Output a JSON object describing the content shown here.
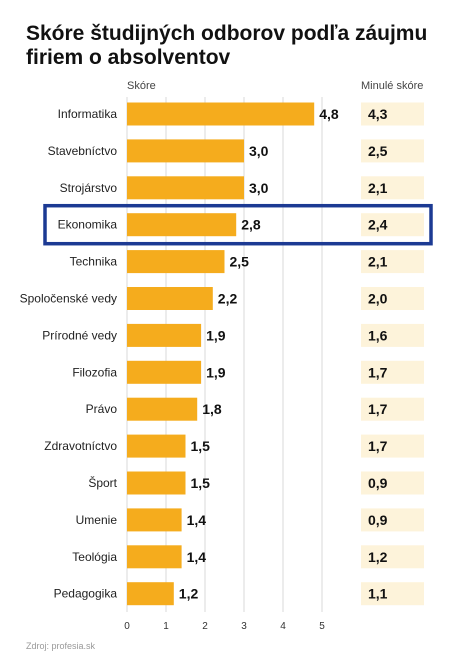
{
  "chart_data": {
    "type": "bar",
    "orientation": "horizontal",
    "title": "Skóre študijných odborov podľa záujmu firiem o absolventov",
    "value_header": "Skóre",
    "previous_header": "Minulé skóre",
    "categories": [
      "Informatika",
      "Stavebníctvo",
      "Strojárstvo",
      "Ekonomika",
      "Technika",
      "Spoločenské vedy",
      "Prírodné vedy",
      "Filozofia",
      "Právo",
      "Zdravotníctvo",
      "Šport",
      "Umenie",
      "Teológia",
      "Pedagogika"
    ],
    "values": [
      4.8,
      3.0,
      3.0,
      2.8,
      2.5,
      2.2,
      1.9,
      1.9,
      1.8,
      1.5,
      1.5,
      1.4,
      1.4,
      1.2
    ],
    "value_labels": [
      "4,8",
      "3,0",
      "3,0",
      "2,8",
      "2,5",
      "2,2",
      "1,9",
      "1,9",
      "1,8",
      "1,5",
      "1,5",
      "1,4",
      "1,4",
      "1,2"
    ],
    "previous_values": [
      4.3,
      2.5,
      2.1,
      2.4,
      2.1,
      2.0,
      1.6,
      1.7,
      1.7,
      1.7,
      0.9,
      0.9,
      1.2,
      1.1
    ],
    "previous_labels": [
      "4,3",
      "2,5",
      "2,1",
      "2,4",
      "2,1",
      "2,0",
      "1,6",
      "1,7",
      "1,7",
      "1,7",
      "0,9",
      "0,9",
      "1,2",
      "1,1"
    ],
    "highlighted": "Ekonomika",
    "xlim": [
      0,
      5
    ],
    "xticks": [
      "0",
      "1",
      "2",
      "3",
      "4",
      "5"
    ],
    "grid": true,
    "colors": {
      "bar": "#f5ac1d",
      "previous_bg": "#fdf3da",
      "highlight": "#1c3a93",
      "grid": "#d8d8d8"
    }
  },
  "source": "Zdroj: profesia.sk"
}
